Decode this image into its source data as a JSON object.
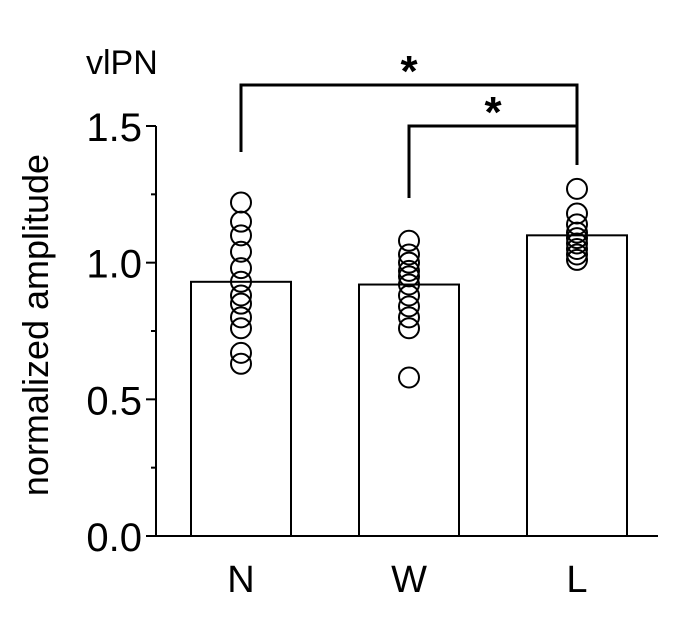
{
  "chart_data": {
    "type": "bar",
    "title": "vlPN",
    "xlabel": "",
    "ylabel": "normalized amplitude",
    "ylim": [
      0,
      1.5
    ],
    "yticks": [
      "0.0",
      "0.5",
      "1.0",
      "1.5"
    ],
    "ytick_values": [
      0.0,
      0.5,
      1.0,
      1.5
    ],
    "categories": [
      "N",
      "W",
      "L"
    ],
    "values": [
      0.93,
      0.92,
      1.1
    ],
    "points": [
      [
        1.22,
        1.15,
        1.1,
        1.04,
        0.98,
        0.93,
        0.88,
        0.85,
        0.8,
        0.76,
        0.67,
        0.63
      ],
      [
        1.08,
        1.03,
        1.0,
        0.97,
        0.95,
        0.92,
        0.88,
        0.84,
        0.8,
        0.76,
        0.58
      ],
      [
        1.27,
        1.18,
        1.14,
        1.11,
        1.09,
        1.07,
        1.05,
        1.03,
        1.01
      ]
    ],
    "significance": [
      {
        "from": "N",
        "to": "L",
        "label": "*"
      },
      {
        "from": "W",
        "to": "L",
        "label": "*"
      }
    ],
    "grid": false,
    "legend": false
  }
}
